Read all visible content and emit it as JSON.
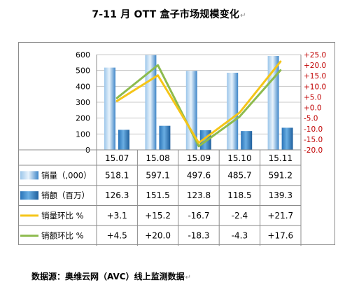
{
  "title": "7-11 月 OTT 盒子市场规模变化",
  "return_mark": "↵",
  "source": "数据源：奥维云网（AVC）线上监测数据",
  "colors": {
    "volume_bar": "#4a8fcb",
    "amount_bar": "#2f7fc4",
    "volume_mom_line": "#f5c518",
    "amount_mom_line": "#8dbb4e",
    "right_axis_text": "#c00000",
    "grid": "#c8c8c8"
  },
  "chart_data": {
    "type": "bar",
    "categories": [
      "15.07",
      "15.08",
      "15.09",
      "15.10",
      "15.11"
    ],
    "left_axis": {
      "ylim": [
        0,
        600
      ],
      "ticks": [
        0,
        100,
        200,
        300,
        400,
        500,
        600
      ]
    },
    "right_axis": {
      "ylim": [
        -20,
        25
      ],
      "ticks": [
        25,
        20,
        15,
        10,
        5,
        0,
        -5,
        -10,
        -15,
        -20
      ],
      "tick_labels": [
        "+25.0",
        "+20.0",
        "+15.0",
        "+10.0",
        "+5.0",
        "+0.0",
        "-5.0",
        "-10.0",
        "-15.0",
        "-20.0"
      ]
    },
    "grid": true,
    "series": [
      {
        "name": "销量（,000）",
        "type": "bar",
        "axis": "left",
        "values": [
          518.1,
          597.1,
          497.6,
          485.7,
          591.2
        ],
        "labels": [
          "518.1",
          "597.1",
          "497.6",
          "485.7",
          "591.2"
        ]
      },
      {
        "name": "销额（百万）",
        "type": "bar",
        "axis": "left",
        "values": [
          126.3,
          151.5,
          123.8,
          118.5,
          139.3
        ],
        "labels": [
          "126.3",
          "151.5",
          "123.8",
          "118.5",
          "139.3"
        ]
      },
      {
        "name": "销量环比 %",
        "type": "line",
        "axis": "right",
        "values": [
          3.1,
          15.2,
          -16.7,
          -2.4,
          21.7
        ],
        "labels": [
          "+3.1",
          "+15.2",
          "-16.7",
          "-2.4",
          "+21.7"
        ]
      },
      {
        "name": "销额环比 %",
        "type": "line",
        "axis": "right",
        "values": [
          4.5,
          20.0,
          -18.3,
          -4.3,
          17.6
        ],
        "labels": [
          "+4.5",
          "+20.0",
          "-18.3",
          "-4.3",
          "+17.6"
        ]
      }
    ]
  }
}
